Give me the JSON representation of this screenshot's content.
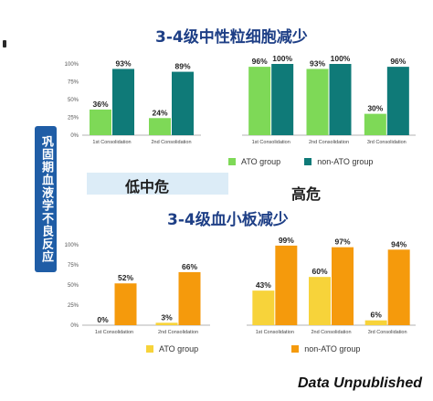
{
  "headings": {
    "neutrophil_title": "3-4级中性粒细胞减少",
    "platelet_title": "3-4级血小板减少",
    "side_label": "巩固期血液学不良反应",
    "low_mid_risk": "低中危",
    "high_risk": "高危",
    "footer": "Data Unpublished"
  },
  "colors": {
    "neutrophil_ato": "#7ed957",
    "neutrophil_non_ato": "#0f7a78",
    "platelet_ato": "#f7d33a",
    "platelet_non_ato": "#f59a0c",
    "title": "#1e3f86"
  },
  "legends": {
    "neutrophil": {
      "ato": "ATO group",
      "non_ato": "non-ATO group"
    },
    "platelet": {
      "ato": "ATO group",
      "non_ato": "non-ATO group"
    }
  },
  "chart_data": [
    {
      "type": "bar",
      "title": "3-4级中性粒细胞减少",
      "panel": "低中危",
      "categories": [
        "1st Consolidation",
        "2nd Consolidation"
      ],
      "series": [
        {
          "name": "ATO group",
          "values": [
            36,
            24
          ]
        },
        {
          "name": "non-ATO group",
          "values": [
            93,
            89
          ]
        }
      ],
      "ylim": [
        0,
        100
      ],
      "yticks": [
        "0%",
        "25%",
        "50%",
        "75%",
        "100%"
      ],
      "legend": "bottom"
    },
    {
      "type": "bar",
      "title": "3-4级中性粒细胞减少",
      "panel": "高危",
      "categories": [
        "1st Consolidation",
        "2nd Consolidation",
        "3rd Consolidation"
      ],
      "series": [
        {
          "name": "ATO group",
          "values": [
            96,
            93,
            30
          ]
        },
        {
          "name": "non-ATO group",
          "values": [
            100,
            100,
            96
          ]
        }
      ],
      "ylim": [
        0,
        100
      ],
      "yticks": [
        "0%",
        "25%",
        "50%",
        "75%",
        "100%"
      ],
      "legend": "bottom"
    },
    {
      "type": "bar",
      "title": "3-4级血小板减少",
      "panel": "低中危",
      "categories": [
        "1st Consolidation",
        "2nd Consolidation"
      ],
      "series": [
        {
          "name": "ATO group",
          "values": [
            0,
            3
          ]
        },
        {
          "name": "non-ATO group",
          "values": [
            52,
            66
          ]
        }
      ],
      "ylim": [
        0,
        100
      ],
      "yticks": [
        "0%",
        "25%",
        "50%",
        "75%",
        "100%"
      ],
      "legend": "bottom"
    },
    {
      "type": "bar",
      "title": "3-4级血小板减少",
      "panel": "高危",
      "categories": [
        "1st Consolidation",
        "2nd Consolidation",
        "3rd Consolidation"
      ],
      "series": [
        {
          "name": "ATO group",
          "values": [
            43,
            60,
            6
          ]
        },
        {
          "name": "non-ATO group",
          "values": [
            99,
            97,
            94
          ]
        }
      ],
      "ylim": [
        0,
        100
      ],
      "yticks": [
        "0%",
        "25%",
        "50%",
        "75%",
        "100%"
      ],
      "legend": "bottom"
    }
  ]
}
